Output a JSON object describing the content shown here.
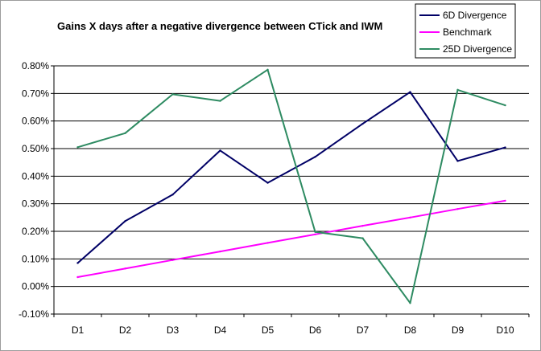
{
  "chart_data": {
    "type": "line",
    "title": "Gains X days after a negative divergence between CTick and IWM",
    "xlabel": "",
    "ylabel": "",
    "categories": [
      "D1",
      "D2",
      "D3",
      "D4",
      "D5",
      "D6",
      "D7",
      "D8",
      "D9",
      "D10"
    ],
    "y_ticks": [
      "-0.10%",
      "0.00%",
      "0.10%",
      "0.20%",
      "0.30%",
      "0.40%",
      "0.50%",
      "0.60%",
      "0.70%",
      "0.80%"
    ],
    "ylim": [
      -0.1,
      0.8
    ],
    "y_unit": "%",
    "grid": true,
    "legend_position": "top-right",
    "series": [
      {
        "name": "6D Divergence",
        "color": "#000066",
        "values": [
          0.085,
          0.237,
          0.333,
          0.493,
          0.376,
          0.47,
          0.59,
          0.705,
          0.455,
          0.504
        ]
      },
      {
        "name": "Benchmark",
        "color": "#ff00ff",
        "values": [
          0.034,
          0.065,
          0.096,
          0.127,
          0.158,
          0.189,
          0.22,
          0.25,
          0.281,
          0.311
        ]
      },
      {
        "name": "25D Divergence",
        "color": "#2e8b62",
        "values": [
          0.505,
          0.556,
          0.697,
          0.673,
          0.786,
          0.198,
          0.175,
          -0.06,
          0.713,
          0.657
        ]
      }
    ]
  }
}
